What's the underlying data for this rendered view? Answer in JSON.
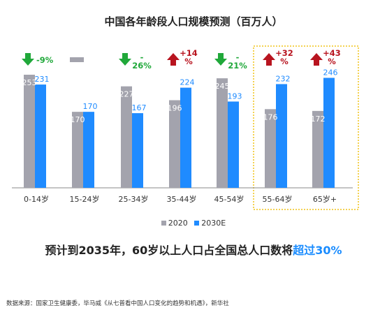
{
  "colors": {
    "y2020": "#a3a3ad",
    "y2030": "#1f8bff",
    "down": "#20a83a",
    "up": "#b8141f",
    "highlight": "#f0c419",
    "axis": "#888888"
  },
  "chart_data": {
    "type": "bar",
    "title": "中国各年龄段人口规模预测（百万人）",
    "categories": [
      "0-14岁",
      "15-24岁",
      "25-34岁",
      "35-44岁",
      "45-54岁",
      "55-64岁",
      "65岁+"
    ],
    "series": [
      {
        "name": "2020",
        "values": [
          253,
          170,
          227,
          196,
          245,
          176,
          172
        ]
      },
      {
        "name": "2030E",
        "values": [
          231,
          170,
          167,
          224,
          193,
          232,
          246
        ]
      }
    ],
    "changes": [
      {
        "dir": "down",
        "text": "-9%"
      },
      {
        "dir": "flat",
        "text": ""
      },
      {
        "dir": "down",
        "text": "-26%"
      },
      {
        "dir": "up",
        "text": "+14%"
      },
      {
        "dir": "down",
        "text": "-21%"
      },
      {
        "dir": "up",
        "text": "+32%"
      },
      {
        "dir": "up",
        "text": "+43%"
      }
    ],
    "highlighted_categories": [
      "55-64岁",
      "65岁+"
    ],
    "ylim": [
      0,
      260
    ],
    "legend_position": "bottom",
    "grid": false
  },
  "headline": {
    "prefix": "预计到2035年，60岁以上人口占全国总人口数将",
    "emphasis": "超过30%"
  },
  "source": "数据来源：国家卫生健康委，毕马威《从七普看中国人口变化的趋势和机遇》，新华社"
}
